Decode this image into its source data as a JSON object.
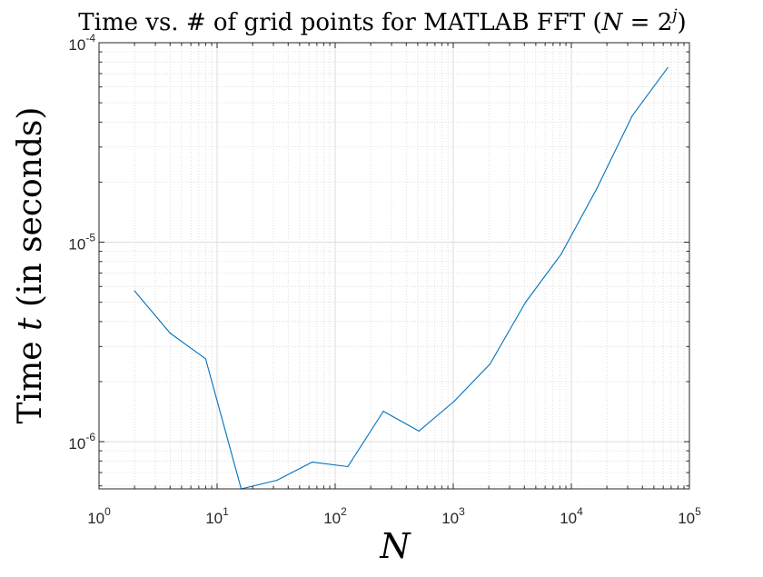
{
  "chart_data": {
    "type": "line",
    "title": {
      "prefix": "Time vs. # of grid points for MATLAB FFT (",
      "var_n": "N",
      "equals": " = 2",
      "exp_j": "j",
      "suffix": ")"
    },
    "xlabel": {
      "var": "N"
    },
    "ylabel": {
      "prefix": "Time ",
      "var": "t",
      "suffix": " (in seconds)"
    },
    "x_scale": "log",
    "y_scale": "log",
    "xlim": [
      1,
      100000
    ],
    "ylim": [
      5.8e-07,
      0.0001
    ],
    "grid": true,
    "minor_grid": true,
    "x_ticks": [
      {
        "value": 1,
        "base": "10",
        "exp": "0"
      },
      {
        "value": 10,
        "base": "10",
        "exp": "1"
      },
      {
        "value": 100,
        "base": "10",
        "exp": "2"
      },
      {
        "value": 1000,
        "base": "10",
        "exp": "3"
      },
      {
        "value": 10000,
        "base": "10",
        "exp": "4"
      },
      {
        "value": 100000,
        "base": "10",
        "exp": "5"
      }
    ],
    "y_ticks": [
      {
        "value": 1e-06,
        "base": "10",
        "exp": "-6"
      },
      {
        "value": 1e-05,
        "base": "10",
        "exp": "-5"
      },
      {
        "value": 0.0001,
        "base": "10",
        "exp": "-4"
      }
    ],
    "series": [
      {
        "color": "#0072BD",
        "x": [
          2,
          4,
          8,
          16,
          32,
          64,
          128,
          256,
          512,
          1024,
          2048,
          4096,
          8192,
          16384,
          32768,
          65536
        ],
        "y": [
          5.7e-06,
          3.5e-06,
          2.6e-06,
          5.8e-07,
          6.4e-07,
          7.9e-07,
          7.5e-07,
          1.42e-06,
          1.13e-06,
          1.6e-06,
          2.45e-06,
          5e-06,
          8.7e-06,
          1.85e-05,
          4.3e-05,
          7.5e-05
        ]
      }
    ]
  }
}
